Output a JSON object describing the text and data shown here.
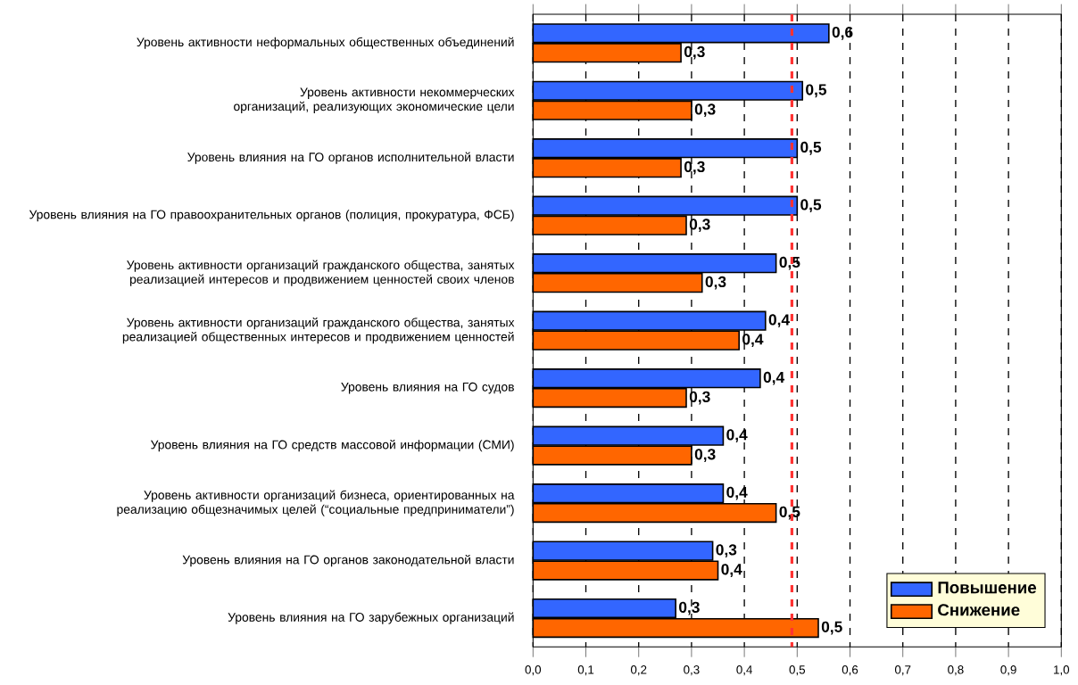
{
  "chart_data": {
    "type": "bar",
    "orientation": "horizontal",
    "categories": [
      "Уровень активности неформальных общественных объединений",
      "Уровень активности некоммерческих организаций, реализующих экономические цели",
      "Уровень влияния на ГО органов исполнительной власти",
      "Уровень влияния на ГО правоохранительных органов (полиция, прокуратура, ФСБ)",
      "Уровень активности организаций гражданского общества, занятых реализацией интересов и продвижением ценностей своих членов",
      "Уровень активности организаций гражданского общества, занятых реализацией общественных интересов и продвижением ценностей",
      "Уровень влияния на ГО судов",
      "Уровень влияния на ГО средств массовой информации (СМИ)",
      "Уровень активности организаций бизнеса, ориентированных на реализацию общезначимых целей (“социальные предприниматели”)",
      "Уровень влияния на ГО органов законодательной власти",
      "Уровень влияния на ГО зарубежных организаций"
    ],
    "series": [
      {
        "name": "Повышение",
        "color": "#3366ff",
        "values": [
          0.56,
          0.51,
          0.5,
          0.5,
          0.46,
          0.44,
          0.43,
          0.36,
          0.36,
          0.34,
          0.27
        ],
        "value_labels": [
          "0,6",
          "0,5",
          "0,5",
          "0,5",
          "0,5",
          "0,4",
          "0,4",
          "0,4",
          "0,4",
          "0,3",
          "0,3"
        ]
      },
      {
        "name": "Снижение",
        "color": "#ff6600",
        "values": [
          0.28,
          0.3,
          0.28,
          0.29,
          0.32,
          0.39,
          0.29,
          0.3,
          0.46,
          0.35,
          0.54
        ],
        "value_labels": [
          "0,3",
          "0,3",
          "0,3",
          "0,3",
          "0,3",
          "0,4",
          "0,3",
          "0,3",
          "0,5",
          "0,4",
          "0,5"
        ]
      }
    ],
    "xlim": [
      0,
      1
    ],
    "xticks": [
      {
        "value": 0,
        "label": "0,0"
      },
      {
        "value": 0.1,
        "label": "0,1"
      },
      {
        "value": 0.2,
        "label": "0,2"
      },
      {
        "value": 0.3,
        "label": "0,3"
      },
      {
        "value": 0.4,
        "label": "0,4"
      },
      {
        "value": 0.5,
        "label": "0,5"
      },
      {
        "value": 0.6,
        "label": "0,6"
      },
      {
        "value": 0.7,
        "label": "0,7"
      },
      {
        "value": 0.8,
        "label": "0,8"
      },
      {
        "value": 0.9,
        "label": "0,9"
      },
      {
        "value": 1,
        "label": "1,0"
      }
    ],
    "ref_lines": [
      {
        "axis": "x",
        "value": 0.49,
        "color": "#ff3333",
        "line_style": "dashed"
      }
    ],
    "grid": "x",
    "legend": "bottom right"
  }
}
